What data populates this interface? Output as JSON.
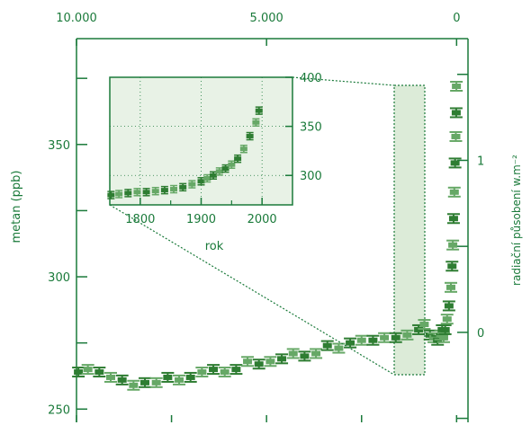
{
  "colors": {
    "axis": "#1a7a3a",
    "text": "#1a7a3a",
    "series_dark": "#2e7d32",
    "series_light": "#66a866",
    "inset_bg": "#e8f2e6",
    "highlight_bg": "#dcebd8"
  },
  "chart_data": [
    {
      "type": "scatter",
      "title": "",
      "ylabel": "metan (ppb)",
      "ylabel_right": "radiační působení w.m⁻²",
      "x_top_ticks": [
        "10.000",
        "5.000",
        "0"
      ],
      "x_top_tick_values": [
        10000,
        5000,
        0
      ],
      "xlim": [
        10000,
        -300
      ],
      "ylim": [
        245,
        390
      ],
      "y_ticks": [
        250,
        300,
        350
      ],
      "y_right_ticks": [
        "0",
        "1"
      ],
      "y_right_tick_values": [
        279,
        344
      ],
      "grid": false,
      "series": [
        {
          "x": [
            9950,
            9700,
            9400,
            9100,
            8800,
            8500,
            8200,
            7900,
            7600,
            7300,
            7000,
            6700,
            6400,
            6100,
            5800,
            5500,
            5200,
            4900,
            4600,
            4300,
            4000,
            3700,
            3400,
            3100,
            2800,
            2500,
            2200,
            1900,
            1600,
            1300,
            1000,
            850,
            700,
            600,
            500,
            420,
            380,
            340,
            300,
            250,
            200,
            150,
            120,
            100,
            80,
            60,
            40,
            20,
            10,
            5
          ],
          "y": [
            264,
            265,
            264,
            262,
            261,
            259,
            260,
            260,
            262,
            261,
            262,
            264,
            265,
            264,
            265,
            268,
            267,
            268,
            269,
            271,
            270,
            271,
            274,
            273,
            275,
            276,
            276,
            277,
            277,
            278,
            280,
            282,
            278,
            277,
            276,
            278,
            280,
            277,
            280,
            284,
            289,
            296,
            304,
            312,
            322,
            332,
            343,
            353,
            362,
            372
          ]
        }
      ]
    },
    {
      "type": "scatter",
      "title": "",
      "xlabel": "rok",
      "x_ticks": [
        1800,
        1900,
        2000
      ],
      "xlim": [
        1750,
        2050
      ],
      "y_ticks": [
        300,
        350,
        400
      ],
      "ylim": [
        270,
        400
      ],
      "grid": true,
      "series": [
        {
          "x": [
            1752,
            1765,
            1780,
            1795,
            1810,
            1825,
            1840,
            1855,
            1870,
            1885,
            1900,
            1910,
            1920,
            1930,
            1940,
            1950,
            1960,
            1970,
            1980,
            1990,
            1995
          ],
          "y": [
            280,
            281,
            282,
            283,
            283,
            284,
            285,
            286,
            288,
            291,
            294,
            297,
            300,
            304,
            307,
            311,
            317,
            327,
            340,
            354,
            366
          ]
        }
      ]
    }
  ]
}
